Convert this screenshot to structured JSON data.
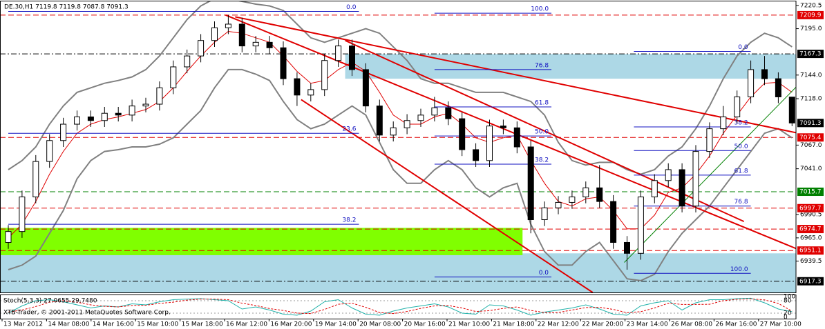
{
  "chart_data": [
    {
      "type": "candlestick",
      "title": "DE.30,H1  7119.8 7119.8 7087.8 7091.3",
      "open": [
        6960,
        6972,
        7010,
        7049,
        7072,
        7090,
        7098,
        7094,
        7102,
        7100,
        7110,
        7112,
        7130,
        7153,
        7165,
        7182,
        7196,
        7200,
        7176,
        7180,
        7174,
        7140,
        7122,
        7128,
        7160,
        7176,
        7150,
        7110,
        7078,
        7086,
        7094,
        7100,
        7108,
        7096,
        7062,
        7050,
        7088,
        7086,
        7065,
        6985,
        6998,
        7004,
        7010,
        7020,
        7005,
        6960,
        6948,
        7010,
        7028,
        7040,
        7000,
        7060,
        7085,
        7098,
        7120,
        7150,
        7140,
        7119.8
      ],
      "high": [
        6979,
        7017,
        7056,
        7079,
        7097,
        7105,
        7105,
        7109,
        7109,
        7117,
        7119,
        7137,
        7160,
        7172,
        7189,
        7203,
        7210,
        7207,
        7187,
        7187,
        7181,
        7147,
        7135,
        7167,
        7183,
        7183,
        7157,
        7117,
        7093,
        7101,
        7107,
        7120,
        7115,
        7103,
        7069,
        7095,
        7095,
        7093,
        7072,
        7005,
        7011,
        7017,
        7027,
        7045,
        7012,
        6967,
        7017,
        7035,
        7047,
        7047,
        7067,
        7092,
        7110,
        7127,
        7160,
        7165,
        7147,
        7119.8
      ],
      "low": [
        6953,
        6965,
        7003,
        7042,
        7065,
        7083,
        7087,
        7087,
        7093,
        7093,
        7103,
        7105,
        7123,
        7146,
        7158,
        7175,
        7189,
        7169,
        7169,
        7167,
        7133,
        7110,
        7115,
        7121,
        7153,
        7143,
        7103,
        7071,
        7071,
        7079,
        7087,
        7093,
        7089,
        7055,
        7043,
        7043,
        7079,
        7058,
        6970,
        6978,
        6991,
        6997,
        7003,
        6998,
        6953,
        6930,
        6941,
        7003,
        7021,
        6993,
        6993,
        7053,
        7078,
        7091,
        7113,
        7133,
        7113,
        7087.8
      ],
      "close": [
        6972,
        7010,
        7049,
        7072,
        7090,
        7098,
        7094,
        7102,
        7100,
        7110,
        7112,
        7130,
        7153,
        7165,
        7182,
        7196,
        7200,
        7176,
        7180,
        7174,
        7140,
        7122,
        7128,
        7160,
        7176,
        7150,
        7110,
        7078,
        7086,
        7094,
        7100,
        7108,
        7096,
        7062,
        7050,
        7088,
        7086,
        7065,
        6985,
        6998,
        7004,
        7010,
        7020,
        7005,
        6960,
        6948,
        7010,
        7028,
        7040,
        7000,
        7060,
        7085,
        7098,
        7120,
        7150,
        7140,
        7120,
        7091.3
      ],
      "ma": {
        "color": "#e00000",
        "values": [
          6965,
          6980,
          7005,
          7035,
          7060,
          7080,
          7090,
          7095,
          7098,
          7102,
          7106,
          7115,
          7130,
          7148,
          7165,
          7180,
          7192,
          7190,
          7185,
          7180,
          7165,
          7148,
          7135,
          7138,
          7150,
          7158,
          7148,
          7125,
          7100,
          7090,
          7090,
          7098,
          7102,
          7090,
          7075,
          7070,
          7075,
          7078,
          7050,
          7025,
          7005,
          7000,
          7008,
          7010,
          6995,
          6975,
          6975,
          6990,
          7015,
          7020,
          7035,
          7055,
          7080,
          7100,
          7120,
          7135,
          7136,
          7125
        ]
      },
      "bands": {
        "color": "#808080",
        "upper": [
          7040,
          7050,
          7065,
          7090,
          7110,
          7125,
          7130,
          7135,
          7138,
          7142,
          7150,
          7165,
          7185,
          7205,
          7220,
          7228,
          7228,
          7225,
          7222,
          7220,
          7215,
          7200,
          7185,
          7180,
          7185,
          7190,
          7195,
          7190,
          7175,
          7160,
          7140,
          7135,
          7135,
          7130,
          7125,
          7125,
          7125,
          7120,
          7115,
          7100,
          7070,
          7050,
          7045,
          7048,
          7048,
          7040,
          7035,
          7040,
          7055,
          7065,
          7085,
          7110,
          7140,
          7165,
          7180,
          7190,
          7185,
          7175
        ],
        "lower": [
          6930,
          6935,
          6945,
          6970,
          6995,
          7030,
          7050,
          7060,
          7062,
          7065,
          7065,
          7068,
          7075,
          7090,
          7105,
          7130,
          7150,
          7150,
          7145,
          7138,
          7115,
          7095,
          7085,
          7090,
          7100,
          7110,
          7100,
          7070,
          7040,
          7025,
          7025,
          7040,
          7050,
          7040,
          7020,
          7010,
          7020,
          7025,
          6980,
          6950,
          6935,
          6935,
          6950,
          6960,
          6940,
          6920,
          6918,
          6925,
          6950,
          6970,
          6985,
          7000,
          7020,
          7040,
          7060,
          7080,
          7085,
          7075
        ]
      },
      "ylim": [
        6905,
        7225
      ],
      "yticks": [
        7220.5,
        {
          "value": 7195,
          "label": "7195.0"
        },
        {
          "value": 7144,
          "label": "7144.0"
        },
        {
          "value": 7118,
          "label": "7118.0"
        },
        {
          "value": 7067,
          "label": "7067.0"
        },
        {
          "value": 7041,
          "label": "7041.0"
        },
        6990.5,
        {
          "value": 6965,
          "label": "6965.0"
        },
        6939.5
      ],
      "levels": [
        {
          "value": 7209.9,
          "color": "#e00000",
          "style": "dash"
        },
        {
          "value": 7167.3,
          "color": "#000000",
          "style": "dashdot"
        },
        {
          "value": 7091.3,
          "color": "#000000",
          "style": "none"
        },
        {
          "value": 7075.4,
          "color": "#e00000",
          "style": "dash"
        },
        {
          "value": 7015.7,
          "color": "#008000",
          "style": "dash"
        },
        {
          "value": 6997.7,
          "color": "#e00000",
          "style": "dash"
        },
        {
          "value": 6974.7,
          "color": "#e00000",
          "style": "dash"
        },
        {
          "value": 6951.1,
          "color": "#e00000",
          "style": "dash"
        },
        {
          "value": 6917.3,
          "color": "#000000",
          "style": "dashdot"
        }
      ],
      "zones": [
        {
          "x": [
            24.5,
            57.5
          ],
          "y": [
            7140,
            7167
          ],
          "color": "#add8e6"
        },
        {
          "x": [
            -0.6,
            57.5
          ],
          "y": [
            6905,
            6948
          ],
          "color": "#add8e6"
        },
        {
          "x": [
            -0.6,
            37.4
          ],
          "y": [
            6946,
            6976
          ],
          "color": "#80ff00"
        }
      ],
      "trendlines": [
        {
          "from": [
            15.8,
            7210
          ],
          "to": [
            57.5,
            6952
          ],
          "color": "#e00000"
        },
        {
          "from": [
            16.5,
            7208
          ],
          "to": [
            57.5,
            7080
          ],
          "color": "#e00000"
        },
        {
          "from": [
            21.3,
            7117
          ],
          "to": [
            42.5,
            6905
          ],
          "color": "#e00000"
        },
        {
          "from": [
            24.5,
            7182
          ],
          "to": [
            53.5,
            6983
          ],
          "color": "#e00000"
        },
        {
          "from": [
            44.8,
            6938
          ],
          "to": [
            57.5,
            7134
          ],
          "color": "#008000"
        }
      ],
      "fib": [
        {
          "text": "0.0",
          "x": [
            0,
            25.5
          ],
          "price": 7214
        },
        {
          "text": "100.0",
          "x": [
            31,
            39.5
          ],
          "price": 7212
        },
        {
          "text": "76.8",
          "x": [
            31,
            39.5
          ],
          "price": 7150
        },
        {
          "text": "61.8",
          "x": [
            31,
            39.5
          ],
          "price": 7109
        },
        {
          "text": "50.0",
          "x": [
            31,
            39.5
          ],
          "price": 7077
        },
        {
          "text": "23.6",
          "x": [
            0,
            25.5
          ],
          "price": 7080
        },
        {
          "text": "38.2",
          "x": [
            31,
            39.5
          ],
          "price": 7046
        },
        {
          "text": "38.2",
          "x": [
            0,
            25.5
          ],
          "price": 6980
        },
        {
          "text": "0.0",
          "x": [
            31,
            39.5
          ],
          "price": 6922
        },
        {
          "text": "0.0",
          "x": [
            45.5,
            54
          ],
          "price": 7170
        },
        {
          "text": "38.2",
          "x": [
            45.5,
            54
          ],
          "price": 7087
        },
        {
          "text": "50.0",
          "x": [
            45.5,
            54
          ],
          "price": 7061
        },
        {
          "text": "61.8",
          "x": [
            45.5,
            54
          ],
          "price": 7034
        },
        {
          "text": "76.8",
          "x": [
            45.5,
            54
          ],
          "price": 7000
        },
        {
          "text": "100.0",
          "x": [
            45.5,
            54
          ],
          "price": 6926
        }
      ],
      "x_labels": [
        "13 Mar 2012",
        "14 Mar 08:00",
        "14 Mar 16:00",
        "15 Mar 10:00",
        "15 Mar 18:00",
        "16 Mar 12:00",
        "16 Mar 20:00",
        "19 Mar 14:00",
        "20 Mar 08:00",
        "20 Mar 16:00",
        "21 Mar 10:00",
        "21 Mar 18:00",
        "22 Mar 12:00",
        "22 Mar 20:00",
        "23 Mar 14:00",
        "26 Mar 08:00",
        "26 Mar 16:00",
        "27 Mar 10:00"
      ]
    },
    {
      "type": "line",
      "title": "Stoch(5,3,3) 27.0655 29.7480",
      "note": "XTB-Trader, © 2001-2011 MetaQuotes Software Corp.",
      "ylim": [
        0,
        100
      ],
      "yticks": [
        100,
        80,
        20,
        0
      ],
      "series": [
        {
          "color": "#20b2aa",
          "dash": false,
          "values": [
            20,
            55,
            80,
            85,
            75,
            60,
            45,
            55,
            50,
            65,
            60,
            75,
            85,
            88,
            90,
            85,
            80,
            40,
            50,
            35,
            15,
            10,
            30,
            75,
            85,
            45,
            15,
            10,
            30,
            45,
            55,
            65,
            50,
            20,
            15,
            60,
            55,
            35,
            10,
            25,
            35,
            45,
            60,
            40,
            15,
            10,
            55,
            70,
            80,
            35,
            70,
            85,
            85,
            90,
            92,
            70,
            40,
            27.0655
          ]
        },
        {
          "color": "#e00000",
          "dash": true,
          "values": [
            25,
            35,
            52,
            73,
            80,
            73,
            60,
            53,
            50,
            57,
            58,
            67,
            73,
            83,
            88,
            88,
            85,
            68,
            57,
            42,
            33,
            20,
            18,
            38,
            63,
            68,
            48,
            23,
            18,
            28,
            43,
            55,
            57,
            45,
            28,
            32,
            43,
            50,
            33,
            23,
            23,
            35,
            47,
            48,
            38,
            22,
            27,
            45,
            68,
            62,
            62,
            63,
            80,
            87,
            89,
            84,
            67,
            29.748
          ]
        }
      ]
    }
  ]
}
